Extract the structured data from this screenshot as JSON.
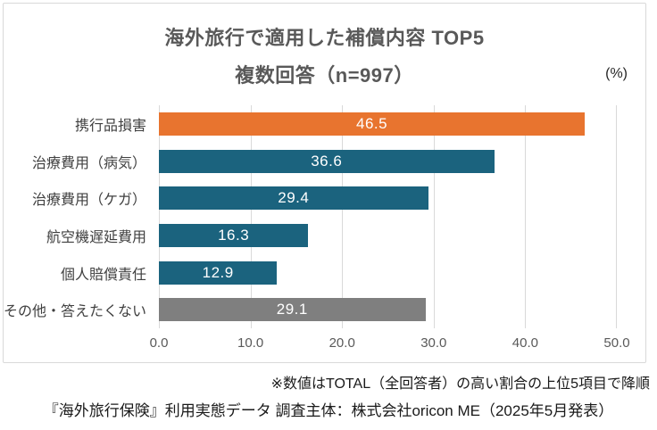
{
  "header": {
    "title_line1": "海外旅行で適用した補償内容 TOP5",
    "title_line2": "複数回答（n=997）",
    "unit_label": "(%)"
  },
  "chart_data": {
    "type": "bar",
    "orientation": "horizontal",
    "title": "海外旅行で適用した補償内容 TOP5",
    "subtitle": "複数回答（n=997）",
    "unit": "(%)",
    "categories": [
      "携行品損害",
      "治療費用（病気）",
      "治療費用（ケガ）",
      "航空機遅延費用",
      "個人賠償責任",
      "その他・答えたくない"
    ],
    "values": [
      46.5,
      36.6,
      29.4,
      16.3,
      12.9,
      29.1
    ],
    "bar_colors": [
      "#e8742f",
      "#1b637e",
      "#1b637e",
      "#1b637e",
      "#1b637e",
      "#7f7f7f"
    ],
    "value_label_color": "#ffffff",
    "x_ticks": [
      "0.0",
      "10.0",
      "20.0",
      "30.0",
      "40.0",
      "50.0"
    ],
    "xlim": [
      0,
      50
    ],
    "grid": true,
    "gridline_color": "#d9d9d9",
    "legend": "none"
  },
  "footnotes": {
    "note1": "※数値はTOTAL（全回答者）の高い割合の上位5項目で降順",
    "note2": "『海外旅行保険』利用実態データ 調査主体：株式会社oricon ME（2025年5月発表）"
  },
  "colors": {
    "accent_orange": "#e8742f",
    "accent_teal": "#1b637e",
    "accent_gray": "#7f7f7f",
    "border": "#d9d9d9",
    "title_text": "#595959"
  }
}
